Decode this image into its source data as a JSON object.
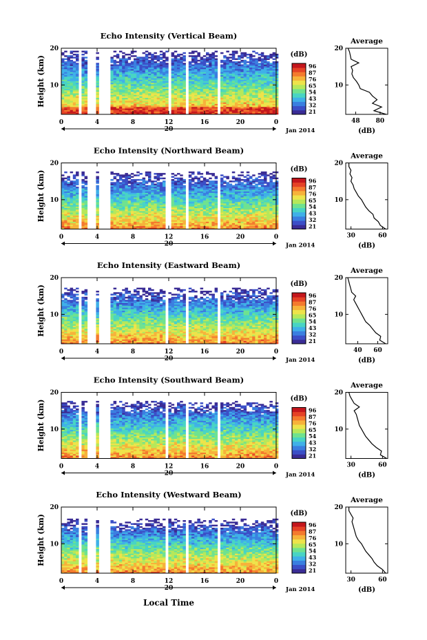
{
  "figure": {
    "x_axis_title": "Local Time",
    "y_axis_title": "Height (km)",
    "x_ticks": [
      "0",
      "4",
      "8",
      "12",
      "16",
      "20",
      "0"
    ],
    "y_ticks": [
      "20",
      "10"
    ],
    "date_label": "Jan 2014",
    "day_label": "20",
    "colorbar_unit": "(dB)",
    "colorbar_ticks": [
      "96",
      "87",
      "76",
      "65",
      "54",
      "43",
      "32",
      "21"
    ],
    "avg_title": "Average",
    "avg_xlabel": "(dB)",
    "avg_y_ticks": [
      "20",
      "10"
    ]
  },
  "chart_data": [
    {
      "type": "heatmap",
      "title": "Echo Intensity (Vertical Beam)",
      "xlim": [
        0,
        24
      ],
      "ylim": [
        2,
        20
      ],
      "colorbar_range": [
        21,
        96
      ],
      "echo_top_km": 19.5,
      "data_gaps_hours": [
        [
          2.1,
          2.4
        ],
        [
          3.0,
          3.8
        ],
        [
          4.3,
          5.4
        ],
        [
          11.8,
          12.3
        ],
        [
          13.9,
          14.1
        ],
        [
          17.5,
          17.7
        ]
      ],
      "profile": {
        "xlabel": "(dB)",
        "xticks": [
          "48",
          "80"
        ],
        "xlim": [
          35,
          90
        ],
        "height_km": [
          2,
          3,
          4,
          5,
          6,
          7,
          8,
          9,
          10,
          11,
          12,
          13,
          14,
          15,
          16,
          17,
          18,
          19,
          20
        ],
        "mean_db": [
          88,
          72,
          82,
          70,
          76,
          70,
          66,
          54,
          52,
          49,
          45,
          43,
          44,
          42,
          52,
          42,
          41,
          40,
          38
        ]
      }
    },
    {
      "type": "heatmap",
      "title": "Echo Intensity (Northward Beam)",
      "xlim": [
        0,
        24
      ],
      "ylim": [
        2,
        20
      ],
      "colorbar_range": [
        21,
        96
      ],
      "echo_top_km": 17.5,
      "data_gaps_hours": [
        [
          2.1,
          2.4
        ],
        [
          3.0,
          3.8
        ],
        [
          4.3,
          5.4
        ],
        [
          11.6,
          11.9
        ],
        [
          12.1,
          12.4
        ],
        [
          13.9,
          14.1
        ],
        [
          17.5,
          17.7
        ]
      ],
      "profile": {
        "xlabel": "(dB)",
        "xticks": [
          "30",
          "60"
        ],
        "xlim": [
          25,
          65
        ],
        "height_km": [
          2,
          3,
          4,
          5,
          6,
          7,
          8,
          9,
          10,
          11,
          12,
          13,
          14,
          15,
          16,
          17,
          18,
          19,
          20
        ],
        "mean_db": [
          63,
          58,
          56,
          52,
          51,
          47,
          44,
          42,
          40,
          37,
          35,
          33,
          32,
          30,
          31,
          29,
          30,
          28,
          28
        ]
      }
    },
    {
      "type": "heatmap",
      "title": "Echo Intensity (Eastward Beam)",
      "xlim": [
        0,
        24
      ],
      "ylim": [
        2,
        20
      ],
      "colorbar_range": [
        21,
        96
      ],
      "echo_top_km": 17.2,
      "data_gaps_hours": [
        [
          2.1,
          2.4
        ],
        [
          3.0,
          3.8
        ],
        [
          4.3,
          5.4
        ],
        [
          11.6,
          12.0
        ],
        [
          13.9,
          14.1
        ],
        [
          17.5,
          17.7
        ]
      ],
      "profile": {
        "xlabel": "(dB)",
        "xticks": [
          "40",
          "60"
        ],
        "xlim": [
          28,
          70
        ],
        "height_km": [
          2,
          3,
          4,
          5,
          6,
          7,
          8,
          9,
          10,
          11,
          12,
          13,
          14,
          15,
          16,
          17,
          18,
          19,
          20
        ],
        "mean_db": [
          68,
          62,
          63,
          58,
          55,
          52,
          48,
          46,
          44,
          42,
          40,
          38,
          36,
          38,
          34,
          33,
          32,
          31,
          30
        ]
      }
    },
    {
      "type": "heatmap",
      "title": "Echo Intensity (Southward Beam)",
      "xlim": [
        0,
        24
      ],
      "ylim": [
        2,
        20
      ],
      "colorbar_range": [
        21,
        96
      ],
      "echo_top_km": 17.8,
      "data_gaps_hours": [
        [
          2.1,
          2.4
        ],
        [
          3.0,
          3.8
        ],
        [
          4.3,
          5.4
        ],
        [
          11.6,
          12.0
        ],
        [
          13.9,
          14.1
        ],
        [
          17.5,
          17.7
        ]
      ],
      "profile": {
        "xlabel": "(dB)",
        "xticks": [
          "30",
          "60"
        ],
        "xlim": [
          25,
          65
        ],
        "height_km": [
          2,
          3,
          4,
          5,
          6,
          7,
          8,
          9,
          10,
          11,
          12,
          13,
          14,
          15,
          16,
          17,
          18,
          19,
          20
        ],
        "mean_db": [
          64,
          58,
          59,
          54,
          50,
          47,
          44,
          42,
          40,
          38,
          37,
          36,
          35,
          33,
          38,
          33,
          31,
          29,
          28
        ]
      }
    },
    {
      "type": "heatmap",
      "title": "Echo Intensity (Westward Beam)",
      "xlim": [
        0,
        24
      ],
      "ylim": [
        2,
        20
      ],
      "colorbar_range": [
        21,
        96
      ],
      "echo_top_km": 16.8,
      "data_gaps_hours": [
        [
          2.1,
          2.4
        ],
        [
          3.0,
          3.8
        ],
        [
          4.3,
          5.4
        ],
        [
          11.6,
          12.0
        ],
        [
          13.9,
          14.1
        ],
        [
          17.5,
          17.7
        ]
      ],
      "profile": {
        "xlabel": "(dB)",
        "xticks": [
          "30",
          "60"
        ],
        "xlim": [
          25,
          65
        ],
        "height_km": [
          2,
          3,
          4,
          5,
          6,
          7,
          8,
          9,
          10,
          11,
          12,
          13,
          14,
          15,
          16,
          17,
          18,
          19,
          20
        ],
        "mean_db": [
          63,
          60,
          55,
          52,
          50,
          47,
          44,
          42,
          40,
          37,
          35,
          34,
          33,
          32,
          31,
          32,
          30,
          28,
          28
        ]
      }
    }
  ]
}
